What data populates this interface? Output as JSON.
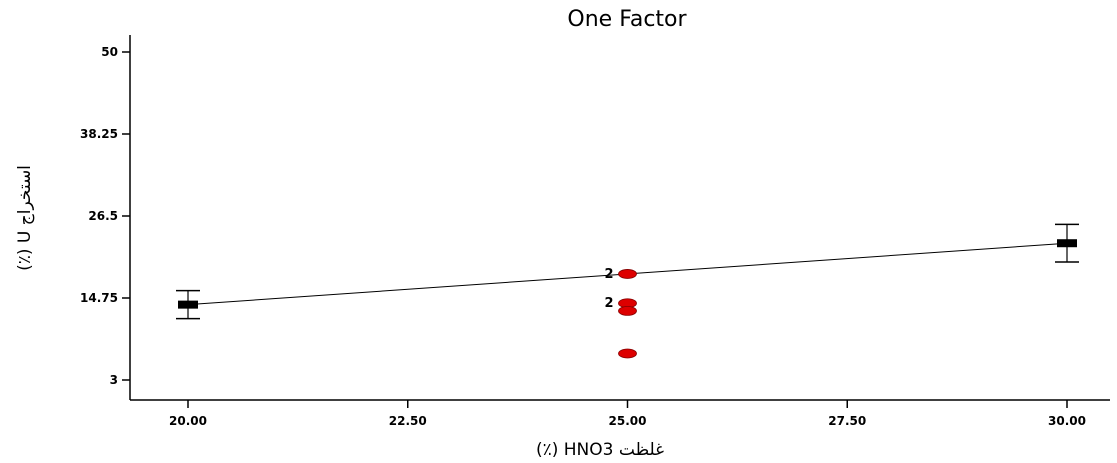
{
  "chart_data": {
    "type": "scatter",
    "title": "One Factor",
    "xlabel": "غلظت HNO3 (٪)",
    "ylabel": "استخراج U (٪)",
    "xlim": [
      20,
      30
    ],
    "ylim": [
      -2,
      56
    ],
    "x_ticks": [
      "20.00",
      "22.50",
      "25.00",
      "27.50",
      "30.00"
    ],
    "y_ticks": [
      "3",
      "14.75",
      "26.5",
      "38.25",
      "50"
    ],
    "grid": false,
    "colors": {
      "points": "#dd0000",
      "points_outline": "#880000",
      "fit": "#000000",
      "axis": "#000000"
    },
    "fit_line": [
      {
        "x": 20,
        "y": 13.8
      },
      {
        "x": 30,
        "y": 22.6
      }
    ],
    "error_bars": [
      {
        "x": 20,
        "y": 13.8,
        "lower": 11.8,
        "upper": 15.8
      },
      {
        "x": 30,
        "y": 22.6,
        "lower": 19.9,
        "upper": 25.3
      }
    ],
    "points": [
      {
        "x": 25,
        "y": 18.2,
        "label": "2"
      },
      {
        "x": 25,
        "y": 14.0,
        "label": "2"
      },
      {
        "x": 25,
        "y": 12.9,
        "label": ""
      },
      {
        "x": 25,
        "y": 6.8,
        "label": ""
      }
    ]
  }
}
